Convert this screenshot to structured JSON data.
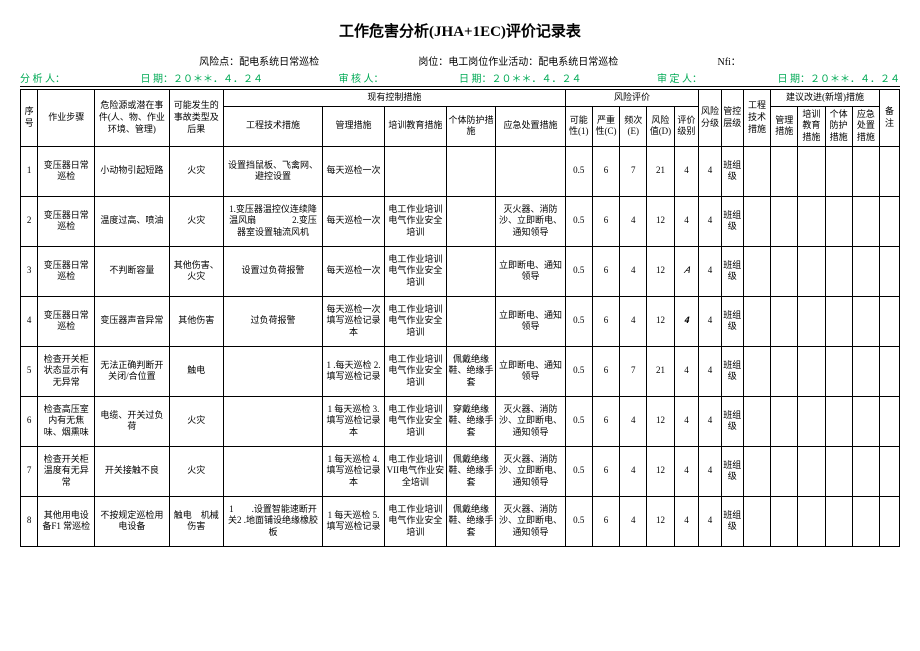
{
  "title": "工作危害分析(JHA+1EC)评价记录表",
  "meta1": {
    "risk_point_label": "风险点：",
    "risk_point": "配电系统日常巡检",
    "post_label": "岗位：",
    "post": "电工岗位作业活动：配电系统日常巡检",
    "nfi_label": "Nfi："
  },
  "meta2": {
    "analyst_label": "分 析 人：",
    "date1_label": "日 期：",
    "date1": "２０＊＊．４．２４",
    "reviewer_label": "审 核 人：",
    "date2_label": "日 期：",
    "date2": "２０＊＊．４．２４",
    "assessor_label": "审 定 人：",
    "date3_label": "日 期：",
    "date3": "２０＊＊．４．２４"
  },
  "headers": {
    "seq": "序号",
    "step": "作业步骤",
    "hazard": "危险源或潜在事件(人、物、作业环境、管理)",
    "consequence": "可能发生的事故类型及后果",
    "existing": "现有控制措施",
    "eng": "工程技术措施",
    "mgmt": "管理措施",
    "train": "培训教育措施",
    "ppe": "个体防护措施",
    "emergency": "应急处置措施",
    "risk_eval": "风险评价",
    "L": "可能性(1)",
    "S": "严重性(C)",
    "E": "频次(E)",
    "D": "风险值(D)",
    "level": "评价级别",
    "risk_grade": "风险分级",
    "ctrl_grade": "管控层级",
    "eng2": "工程技术措施",
    "suggest": "建议改进(新增)措施",
    "sug_mgmt": "管理措施",
    "sug_train": "培训教育措施",
    "sug_ppe": "个体防护措施",
    "sug_emergency": "应急处置措施",
    "note": "备注"
  },
  "rows": [
    {
      "n": "1",
      "step": "变压器日常巡检",
      "hazard": "小动物引起短路",
      "cons": "火灾",
      "eng": "设置挡鼠板、飞禽网、避控设置",
      "mgmt": "每天巡检一次",
      "train": "",
      "ppe": "",
      "emer": "",
      "L": "0.5",
      "S": "6",
      "E": "7",
      "D": "21",
      "lv": "4",
      "rg": "4",
      "cg": "班组级"
    },
    {
      "n": "2",
      "step": "变压器日常巡检",
      "hazard": "温度过高、喷油",
      "cons": "火灾",
      "eng": "1.变压器温控仪连续降温风扇　　　　2.变压器室设置轴流风机",
      "mgmt": "每天巡检一次",
      "train": "电工作业培训电气作业安全培训",
      "ppe": "",
      "emer": "灭火器、消防沙、立即断电、通知领导",
      "L": "0.5",
      "S": "6",
      "E": "4",
      "D": "12",
      "lv": "4",
      "rg": "4",
      "cg": "班组级"
    },
    {
      "n": "3",
      "step": "变压器日常巡检",
      "hazard": "不判断容量",
      "cons": "其他伤害、火灾",
      "eng": "设置过负荷报警",
      "mgmt": "每天巡检一次",
      "train": "电工作业培训电气作业安全培训",
      "ppe": "",
      "emer": "立即断电、通知领导",
      "L": "0.5",
      "S": "6",
      "E": "4",
      "D": "12",
      "lv": "𝐴",
      "rg": "4",
      "cg": "班组级"
    },
    {
      "n": "4",
      "step": "变压器日常巡检",
      "hazard": "变压器声音异常",
      "cons": "其他伤害",
      "eng": "过负荷报警",
      "mgmt": "每天巡检一次填写巡检记录本",
      "train": "电工作业培训电气作业安全培训",
      "ppe": "",
      "emer": "立即断电、通知领导",
      "L": "0.5",
      "S": "6",
      "E": "4",
      "D": "12",
      "lv": "𝟒",
      "rg": "4",
      "cg": "班组级"
    },
    {
      "n": "5",
      "step": "检查开关柜状态显示有无异常",
      "hazard": "无法正确判断开关闭/合位置",
      "cons": "触电",
      "eng": "",
      "mgmt": "1 .每天巡检 2.填写巡检记录",
      "train": "电工作业培训电气作业安全培训",
      "ppe": "佩戴绝缘鞋、绝缘手套",
      "emer": "立即断电、通知领导",
      "L": "0.5",
      "S": "6",
      "E": "7",
      "D": "21",
      "lv": "4",
      "rg": "4",
      "cg": "班组级"
    },
    {
      "n": "6",
      "step": "检查高压室内有无焦味、烟熏味",
      "hazard": "电缆、开关过负荷",
      "cons": "火灾",
      "eng": "",
      "mgmt": "1 每天巡检 3.填写巡检记录本",
      "train": "电工作业培训电气作业安全培训",
      "ppe": "穿戴绝缘鞋、绝缘手套",
      "emer": "灭火器、消防沙、立即断电、通知领导",
      "L": "0.5",
      "S": "6",
      "E": "4",
      "D": "12",
      "lv": "4",
      "rg": "4",
      "cg": "班组级"
    },
    {
      "n": "7",
      "step": "检查开关柜温度有无异常",
      "hazard": "开关接触不良",
      "cons": "火灾",
      "eng": "",
      "mgmt": "1 每天巡检 4.填写巡检记录本",
      "train": "电工作业培训VII电气作业安全培训",
      "ppe": "佩戴绝缘鞋、绝缘手套",
      "emer": "灭火器、消防沙、立即断电、通知领导",
      "L": "0.5",
      "S": "6",
      "E": "4",
      "D": "12",
      "lv": "4",
      "rg": "4",
      "cg": "班组级"
    },
    {
      "n": "8",
      "step": "其他用电设备F1 常巡检",
      "hazard": "不按规定巡检用电设备",
      "cons": "触电　机械伤害",
      "eng": "1　　.设置智能速断开关2 .地面铺设绝缘橡胶板",
      "mgmt": "1 每天巡检 5.填写巡检记录",
      "train": "电工作业培训电气作业安全培训",
      "ppe": "佩戴绝缘鞋、绝缘手套",
      "emer": "灭火器、消防沙、立即断电、通知领导",
      "L": "0.5",
      "S": "6",
      "E": "4",
      "D": "12",
      "lv": "4",
      "rg": "4",
      "cg": "班组级"
    }
  ]
}
